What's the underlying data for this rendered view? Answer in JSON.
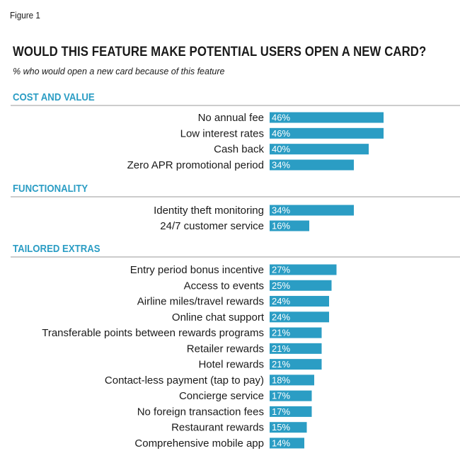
{
  "figure_label": "Figure 1",
  "chart_data": {
    "type": "bar",
    "orientation": "horizontal",
    "title": "WOULD THIS FEATURE MAKE POTENTIAL USERS OPEN A NEW CARD?",
    "subtitle": "% who would open a new card because of this feature",
    "value_suffix": "%",
    "bar_color": "#2b9dc4",
    "section_color": "#2b9dc4",
    "grid": false,
    "sections": [
      {
        "name": "COST AND VALUE",
        "categories": [
          "No annual fee",
          "Low interest rates",
          "Cash back",
          "Zero APR promotional period"
        ],
        "values": [
          46,
          46,
          40,
          34
        ]
      },
      {
        "name": "FUNCTIONALITY",
        "categories": [
          "Identity theft monitoring",
          "24/7 customer service"
        ],
        "values": [
          34,
          16
        ]
      },
      {
        "name": "TAILORED EXTRAS",
        "categories": [
          "Entry period bonus incentive",
          "Access to events",
          "Airline miles/travel rewards",
          "Online chat support",
          "Transferable points between rewards programs",
          "Retailer rewards",
          "Hotel rewards",
          "Contact-less payment (tap to pay)",
          "Concierge service",
          "No foreign transaction fees",
          "Restaurant rewards",
          "Comprehensive mobile app"
        ],
        "values": [
          27,
          25,
          24,
          24,
          21,
          21,
          21,
          18,
          17,
          17,
          15,
          14
        ]
      }
    ]
  }
}
